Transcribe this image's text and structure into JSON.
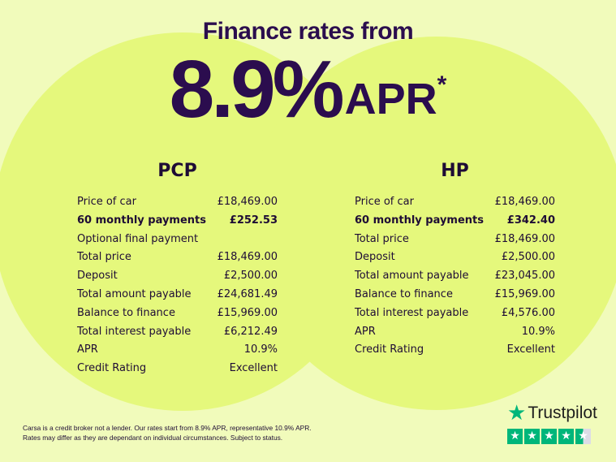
{
  "header": {
    "title": "Finance rates from",
    "rate": "8.9%",
    "rate_suffix": "APR",
    "asterisk": "*"
  },
  "pcp": {
    "title": "PCP",
    "rows": [
      {
        "label": "Price of car",
        "value": "£18,469.00"
      },
      {
        "label": "60 monthly payments",
        "value": "£252.53",
        "bold": true
      },
      {
        "label": "Optional final payment",
        "value": ""
      },
      {
        "label": "Total price",
        "value": "£18,469.00"
      },
      {
        "label": "Deposit",
        "value": "£2,500.00"
      },
      {
        "label": "Total amount payable",
        "value": "£24,681.49"
      },
      {
        "label": "Balance to finance",
        "value": "£15,969.00"
      },
      {
        "label": "Total interest payable",
        "value": "£6,212.49"
      },
      {
        "label": "APR",
        "value": "10.9%"
      },
      {
        "label": "Credit Rating",
        "value": "Excellent"
      }
    ]
  },
  "hp": {
    "title": "HP",
    "rows": [
      {
        "label": "Price of car",
        "value": "£18,469.00"
      },
      {
        "label": "60 monthly payments",
        "value": "£342.40",
        "bold": true
      },
      {
        "label": "Total price",
        "value": "£18,469.00"
      },
      {
        "label": "Deposit",
        "value": "£2,500.00"
      },
      {
        "label": "Total amount payable",
        "value": "£23,045.00"
      },
      {
        "label": "Balance to finance",
        "value": "£15,969.00"
      },
      {
        "label": "Total interest payable",
        "value": "£4,576.00"
      },
      {
        "label": "APR",
        "value": "10.9%"
      },
      {
        "label": "Credit Rating",
        "value": "Excellent"
      }
    ]
  },
  "disclaimer": {
    "line1": "Carsa is a credit broker not a lender. Our rates start from 8.9% APR, representative 10.9% APR.",
    "line2": "Rates may differ as they are dependant on individual circumstances. Subject to status."
  },
  "trustpilot": {
    "name": "Trustpilot",
    "rating": 4.5,
    "icon": "star-icon",
    "color": "#00b67a"
  },
  "colors": {
    "background": "#f1fbbb",
    "circle": "#e5f87c",
    "text": "#2b0d4e"
  }
}
